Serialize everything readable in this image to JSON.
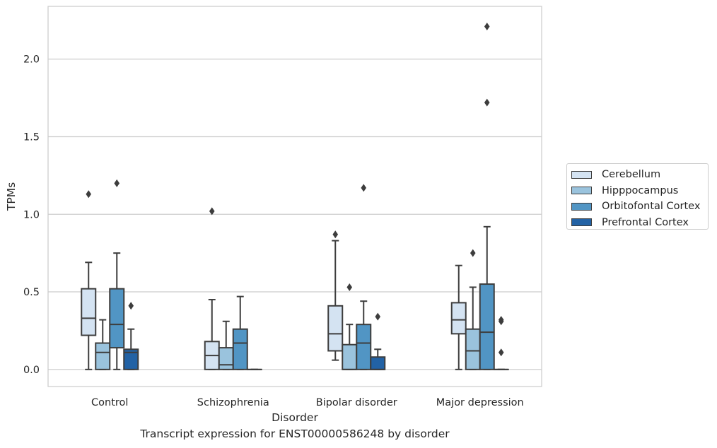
{
  "caption": "Transcript expression for ENST00000586248 by disorder",
  "chart_data": {
    "type": "box",
    "xlabel": "Disorder",
    "ylabel": "TPMs",
    "ylim": [
      -0.11,
      2.34
    ],
    "yticks": [
      "0.0",
      "0.5",
      "1.0",
      "1.5",
      "2.0"
    ],
    "grid": true,
    "legend_position": "right",
    "categories": [
      "Control",
      "Schizophrenia",
      "Bipolar disorder",
      "Major depression"
    ],
    "series": [
      {
        "name": "Cerebellum",
        "color": "#d4e3f2",
        "boxes": [
          {
            "whisker_low": 0.0,
            "q1": 0.22,
            "median": 0.33,
            "q3": 0.52,
            "whisker_high": 0.69,
            "outliers": [
              1.13
            ]
          },
          {
            "whisker_low": 0.0,
            "q1": 0.0,
            "median": 0.09,
            "q3": 0.18,
            "whisker_high": 0.45,
            "outliers": [
              1.02
            ]
          },
          {
            "whisker_low": 0.06,
            "q1": 0.12,
            "median": 0.23,
            "q3": 0.41,
            "whisker_high": 0.83,
            "outliers": [
              0.87
            ]
          },
          {
            "whisker_low": 0.0,
            "q1": 0.23,
            "median": 0.32,
            "q3": 0.43,
            "whisker_high": 0.67,
            "outliers": []
          }
        ]
      },
      {
        "name": "Hipppocampus",
        "color": "#9ac3dd",
        "boxes": [
          {
            "whisker_low": 0.0,
            "q1": 0.0,
            "median": 0.11,
            "q3": 0.17,
            "whisker_high": 0.32,
            "outliers": []
          },
          {
            "whisker_low": 0.0,
            "q1": 0.0,
            "median": 0.03,
            "q3": 0.14,
            "whisker_high": 0.31,
            "outliers": []
          },
          {
            "whisker_low": 0.0,
            "q1": 0.0,
            "median": 0.0,
            "q3": 0.16,
            "whisker_high": 0.29,
            "outliers": [
              0.53
            ]
          },
          {
            "whisker_low": 0.0,
            "q1": 0.0,
            "median": 0.12,
            "q3": 0.26,
            "whisker_high": 0.53,
            "outliers": [
              0.75
            ]
          }
        ]
      },
      {
        "name": "Orbitofontal Cortex",
        "color": "#5195c4",
        "boxes": [
          {
            "whisker_low": 0.0,
            "q1": 0.14,
            "median": 0.29,
            "q3": 0.52,
            "whisker_high": 0.75,
            "outliers": [
              1.2
            ]
          },
          {
            "whisker_low": 0.0,
            "q1": 0.0,
            "median": 0.17,
            "q3": 0.26,
            "whisker_high": 0.47,
            "outliers": []
          },
          {
            "whisker_low": 0.0,
            "q1": 0.0,
            "median": 0.17,
            "q3": 0.29,
            "whisker_high": 0.44,
            "outliers": [
              1.17
            ]
          },
          {
            "whisker_low": 0.0,
            "q1": 0.0,
            "median": 0.24,
            "q3": 0.55,
            "whisker_high": 0.92,
            "outliers": [
              1.72,
              2.21
            ]
          }
        ]
      },
      {
        "name": "Prefrontal Cortex",
        "color": "#2262a5",
        "boxes": [
          {
            "whisker_low": 0.0,
            "q1": 0.0,
            "median": 0.11,
            "q3": 0.13,
            "whisker_high": 0.26,
            "outliers": [
              0.41
            ]
          },
          {
            "whisker_low": 0.0,
            "q1": 0.0,
            "median": 0.0,
            "q3": 0.0,
            "whisker_high": 0.0,
            "outliers": []
          },
          {
            "whisker_low": 0.0,
            "q1": 0.0,
            "median": 0.0,
            "q3": 0.08,
            "whisker_high": 0.13,
            "outliers": [
              0.34
            ]
          },
          {
            "whisker_low": 0.0,
            "q1": 0.0,
            "median": 0.0,
            "q3": 0.0,
            "whisker_high": 0.0,
            "outliers": [
              0.11,
              0.31,
              0.32
            ]
          }
        ]
      }
    ]
  }
}
